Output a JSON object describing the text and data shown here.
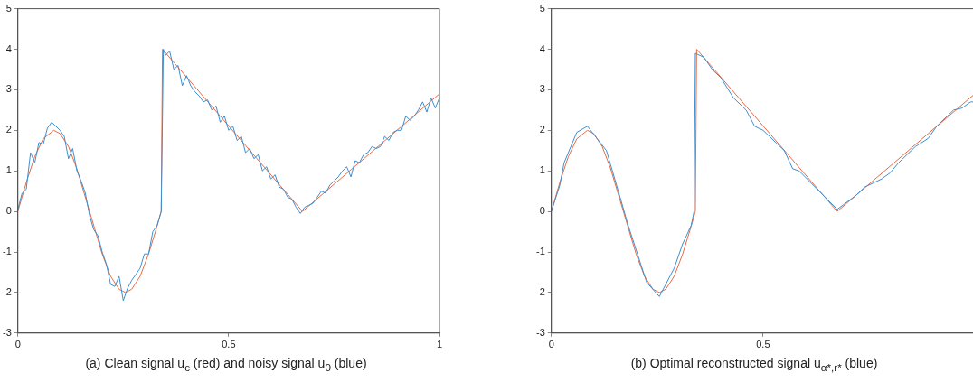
{
  "chart_data": [
    {
      "type": "line",
      "title": "(a) Clean signal u$_{c}$ (red) and noisy signal u$_{0}$ (blue)",
      "xlim": [
        0,
        1
      ],
      "xticks": [
        0,
        0.5,
        1
      ],
      "ylim": [
        -3,
        5
      ],
      "yticks": [
        -3,
        -2,
        -1,
        0,
        1,
        2,
        3,
        4,
        5
      ],
      "grid": false,
      "legend": false,
      "marker": "none",
      "line_style": "solid",
      "series": [
        {
          "color": "#3d8fd1",
          "x": [
            0,
            0.01,
            0.02,
            0.03,
            0.04,
            0.05,
            0.06,
            0.07,
            0.08,
            0.09,
            0.1,
            0.11,
            0.12,
            0.13,
            0.14,
            0.15,
            0.16,
            0.17,
            0.18,
            0.19,
            0.2,
            0.21,
            0.22,
            0.23,
            0.24,
            0.25,
            0.26,
            0.27,
            0.28,
            0.29,
            0.3,
            0.31,
            0.32,
            0.33,
            0.34,
            0.345,
            0.35,
            0.36,
            0.37,
            0.38,
            0.39,
            0.4,
            0.41,
            0.42,
            0.43,
            0.44,
            0.45,
            0.46,
            0.47,
            0.48,
            0.49,
            0.5,
            0.51,
            0.52,
            0.53,
            0.54,
            0.55,
            0.56,
            0.57,
            0.58,
            0.59,
            0.6,
            0.61,
            0.62,
            0.63,
            0.64,
            0.65,
            0.66,
            0.67,
            0.68,
            0.69,
            0.7,
            0.71,
            0.72,
            0.73,
            0.74,
            0.75,
            0.76,
            0.77,
            0.78,
            0.79,
            0.8,
            0.81,
            0.82,
            0.83,
            0.84,
            0.85,
            0.86,
            0.87,
            0.88,
            0.89,
            0.9,
            0.91,
            0.92,
            0.93,
            0.94,
            0.95,
            0.96,
            0.97,
            0.98,
            0.99,
            1
          ],
          "values": [
            0.05,
            0.45,
            0.55,
            1.45,
            1.2,
            1.7,
            1.65,
            2.05,
            2.2,
            2.1,
            2.0,
            1.85,
            1.3,
            1.55,
            1.0,
            0.75,
            0.45,
            -0.1,
            -0.45,
            -0.6,
            -1.0,
            -1.3,
            -1.8,
            -1.85,
            -1.6,
            -2.2,
            -1.9,
            -1.7,
            -1.55,
            -1.4,
            -1.05,
            -1.05,
            -0.5,
            -0.35,
            0.0,
            4.0,
            3.85,
            3.95,
            3.5,
            3.6,
            3.1,
            3.35,
            3.1,
            2.95,
            2.85,
            2.7,
            2.75,
            2.5,
            2.6,
            2.2,
            2.35,
            2.0,
            2.1,
            1.75,
            1.85,
            1.45,
            1.55,
            1.3,
            1.4,
            1.0,
            1.1,
            0.8,
            0.9,
            0.6,
            0.55,
            0.35,
            0.3,
            0.1,
            -0.05,
            0.1,
            0.15,
            0.2,
            0.35,
            0.5,
            0.45,
            0.65,
            0.75,
            0.85,
            1.0,
            1.1,
            0.85,
            1.25,
            1.2,
            1.4,
            1.45,
            1.6,
            1.55,
            1.6,
            1.85,
            1.75,
            1.95,
            2.0,
            2.0,
            2.35,
            2.25,
            2.35,
            2.5,
            2.7,
            2.45,
            2.8,
            2.55,
            2.8
          ]
        },
        {
          "color": "#e56b47",
          "x": [
            0,
            0.02,
            0.04,
            0.06,
            0.085,
            0.1,
            0.12,
            0.14,
            0.17,
            0.2,
            0.22,
            0.24,
            0.255,
            0.27,
            0.29,
            0.31,
            0.33,
            0.34,
            0.343,
            0.675,
            1
          ],
          "values": [
            0,
            0.72,
            1.35,
            1.79,
            2,
            1.92,
            1.6,
            1.05,
            0,
            -1.05,
            -1.6,
            -1.92,
            -2,
            -1.92,
            -1.6,
            -1.05,
            -0.37,
            0,
            4,
            0,
            2.9
          ]
        }
      ]
    },
    {
      "type": "line",
      "title": "(b) Optimal reconstructed signal u$_{α*,r*}$ (blue)",
      "xlim": [
        0,
        1
      ],
      "xticks": [
        0,
        0.5
      ],
      "ylim": [
        -3,
        5
      ],
      "yticks": [
        -3,
        -2,
        -1,
        0,
        1,
        2,
        3,
        4,
        5
      ],
      "grid": false,
      "legend": false,
      "marker": "none",
      "line_style": "solid",
      "series": [
        {
          "color": "#3d8fd1",
          "x": [
            0,
            0.02,
            0.03,
            0.06,
            0.085,
            0.13,
            0.165,
            0.18,
            0.225,
            0.255,
            0.29,
            0.31,
            0.33,
            0.337,
            0.34,
            0.36,
            0.38,
            0.4,
            0.43,
            0.46,
            0.48,
            0.5,
            0.55,
            0.57,
            0.585,
            0.675,
            0.72,
            0.74,
            0.78,
            0.8,
            0.82,
            0.86,
            0.89,
            0.91,
            0.95,
            0.97,
            0.99,
            1
          ],
          "values": [
            0,
            0.65,
            1.2,
            1.95,
            2.1,
            1.5,
            0.25,
            -0.3,
            -1.75,
            -2.1,
            -1.4,
            -0.8,
            -0.35,
            0,
            3.9,
            3.8,
            3.5,
            3.3,
            2.8,
            2.5,
            2.1,
            2.0,
            1.5,
            1.05,
            1.0,
            0.05,
            0.4,
            0.6,
            0.8,
            0.95,
            1.2,
            1.6,
            1.8,
            2.1,
            2.5,
            2.55,
            2.7,
            2.7
          ]
        },
        {
          "color": "#e56b47",
          "x": [
            0,
            0.02,
            0.04,
            0.06,
            0.085,
            0.1,
            0.12,
            0.14,
            0.17,
            0.2,
            0.22,
            0.24,
            0.255,
            0.27,
            0.29,
            0.31,
            0.33,
            0.34,
            0.343,
            0.675,
            1
          ],
          "values": [
            0,
            0.72,
            1.35,
            1.79,
            2,
            1.92,
            1.6,
            1.05,
            0,
            -1.05,
            -1.6,
            -1.92,
            -2,
            -1.92,
            -1.6,
            -1.05,
            -0.37,
            0,
            4,
            0,
            2.9
          ]
        }
      ]
    }
  ]
}
